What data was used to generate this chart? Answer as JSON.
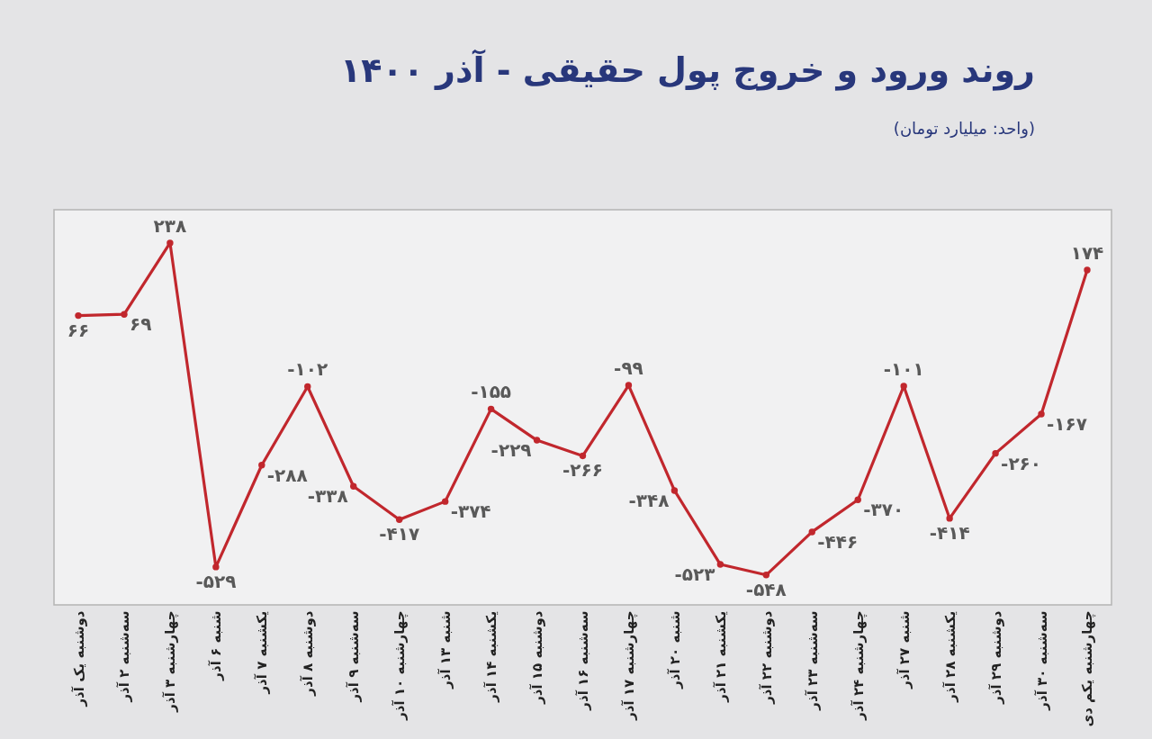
{
  "chart_data": {
    "type": "line",
    "title": "روند ورود و خروج پول حقیقی - آذر ۱۴۰۰",
    "subtitle": "(واحد: میلیارد تومان)",
    "categories": [
      "دوشنبه یک آذر",
      "سه‌شنبه ۲ آذر",
      "چهارشنبه ۳ آذر",
      "شنبه ۶ آذر",
      "یکشنبه ۷ آذر",
      "دوشنبه ۸ آذر",
      "سه‌شنبه ۹ آذر",
      "چهارشنبه ۱۰ آذر",
      "شنبه ۱۳ آذر",
      "یکشنبه ۱۴ آذر",
      "دوشنبه ۱۵ آذر",
      "سه‌شنبه ۱۶ آذر",
      "چهارشنبه ۱۷ آذر",
      "شنبه ۲۰ آذر",
      "یکشنبه ۲۱ آذر",
      "دوشنبه ۲۲ آذر",
      "سه‌شنبه ۲۳ آذر",
      "چهارشنبه ۲۴ آذر",
      "شنبه ۲۷ آذر",
      "یکشنبه ۲۸ آذر",
      "دوشنبه ۲۹ آذر",
      "سه‌شنبه ۳۰ آذر",
      "چهارشنبه یکم دی"
    ],
    "series": [
      {
        "color": "#c1272d",
        "values": [
          66,
          69,
          238,
          -529,
          -288,
          -102,
          -338,
          -417,
          -374,
          -155,
          -229,
          -266,
          -99,
          -348,
          -523,
          -548,
          -446,
          -370,
          -101,
          -414,
          -260,
          -167,
          174
        ],
        "value_labels": [
          "۶۶",
          "۶۹",
          "۲۳۸",
          "-۵۲۹",
          "-۲۸۸",
          "-۱۰۲",
          "-۳۳۸",
          "-۴۱۷",
          "-۳۷۴",
          "-۱۵۵",
          "-۲۲۹",
          "-۲۶۶",
          "-۹۹",
          "-۳۴۸",
          "-۵۲۳",
          "-۵۴۸",
          "-۴۴۶",
          "-۳۷۰",
          "-۱۰۱",
          "-۴۱۴",
          "-۲۶۰",
          "-۱۶۷",
          "۱۷۴"
        ]
      }
    ],
    "marker": "circle",
    "line_style": "solid",
    "tick_labels": "x"
  }
}
